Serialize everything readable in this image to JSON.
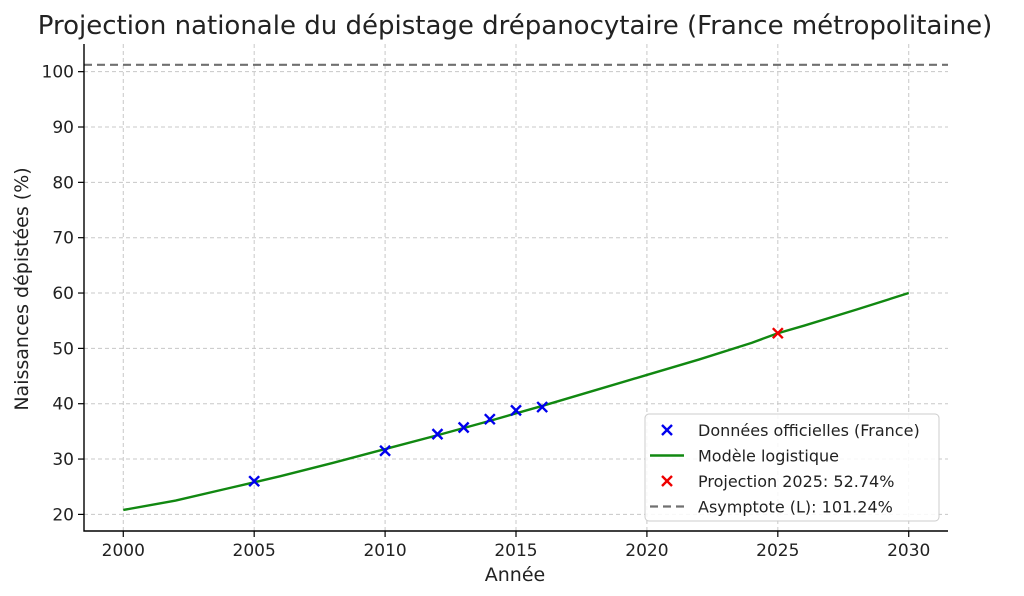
{
  "chart_data": {
    "type": "line",
    "title": "Projection nationale du dépistage drépanocytaire (France métropolitaine)",
    "xlabel": "Année",
    "ylabel": "Naissances dépistées (%)",
    "xlim": [
      1998.5,
      2031.5
    ],
    "ylim": [
      17,
      105
    ],
    "x_ticks": [
      2000,
      2005,
      2010,
      2015,
      2020,
      2025,
      2030
    ],
    "y_ticks": [
      20,
      30,
      40,
      50,
      60,
      70,
      80,
      90,
      100
    ],
    "grid": true,
    "legend_position": "bottom-right",
    "series": [
      {
        "name": "Données officielles (France)",
        "kind": "scatter",
        "marker": "x",
        "color": "#0000ee",
        "x": [
          2005,
          2010,
          2012,
          2013,
          2014,
          2015,
          2016
        ],
        "y": [
          26.0,
          31.5,
          34.5,
          35.7,
          37.2,
          38.8,
          39.4
        ]
      },
      {
        "name": "Modèle logistique",
        "kind": "line",
        "color": "#118811",
        "x": [
          2000,
          2002,
          2004,
          2006,
          2008,
          2010,
          2012,
          2014,
          2016,
          2018,
          2020,
          2022,
          2024,
          2025,
          2026,
          2028,
          2030
        ],
        "y": [
          20.8,
          22.5,
          24.7,
          26.9,
          29.3,
          31.8,
          34.3,
          36.9,
          39.6,
          42.4,
          45.2,
          48.0,
          51.0,
          52.74,
          54.1,
          57.0,
          60.0
        ]
      },
      {
        "name": "Projection 2025: 52.74%",
        "kind": "scatter",
        "marker": "x",
        "color": "#ee0000",
        "x": [
          2025
        ],
        "y": [
          52.74
        ]
      },
      {
        "name": "Asymptote (L): 101.24%",
        "kind": "hline",
        "style": "dashed",
        "color": "#707070",
        "y": 101.24
      }
    ]
  }
}
